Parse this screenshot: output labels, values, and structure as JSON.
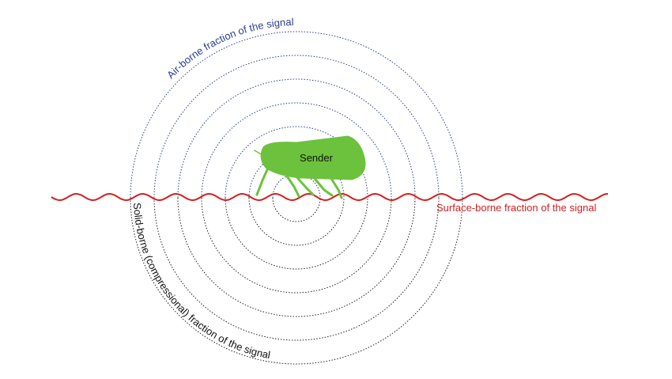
{
  "labels": {
    "air_borne": "Air-borne fraction of the signal",
    "sender": "Sender",
    "surface_borne": "Surface-borne fraction of the signal",
    "solid_borne": "Solid-borne (compressional) fraction of the signal"
  }
}
